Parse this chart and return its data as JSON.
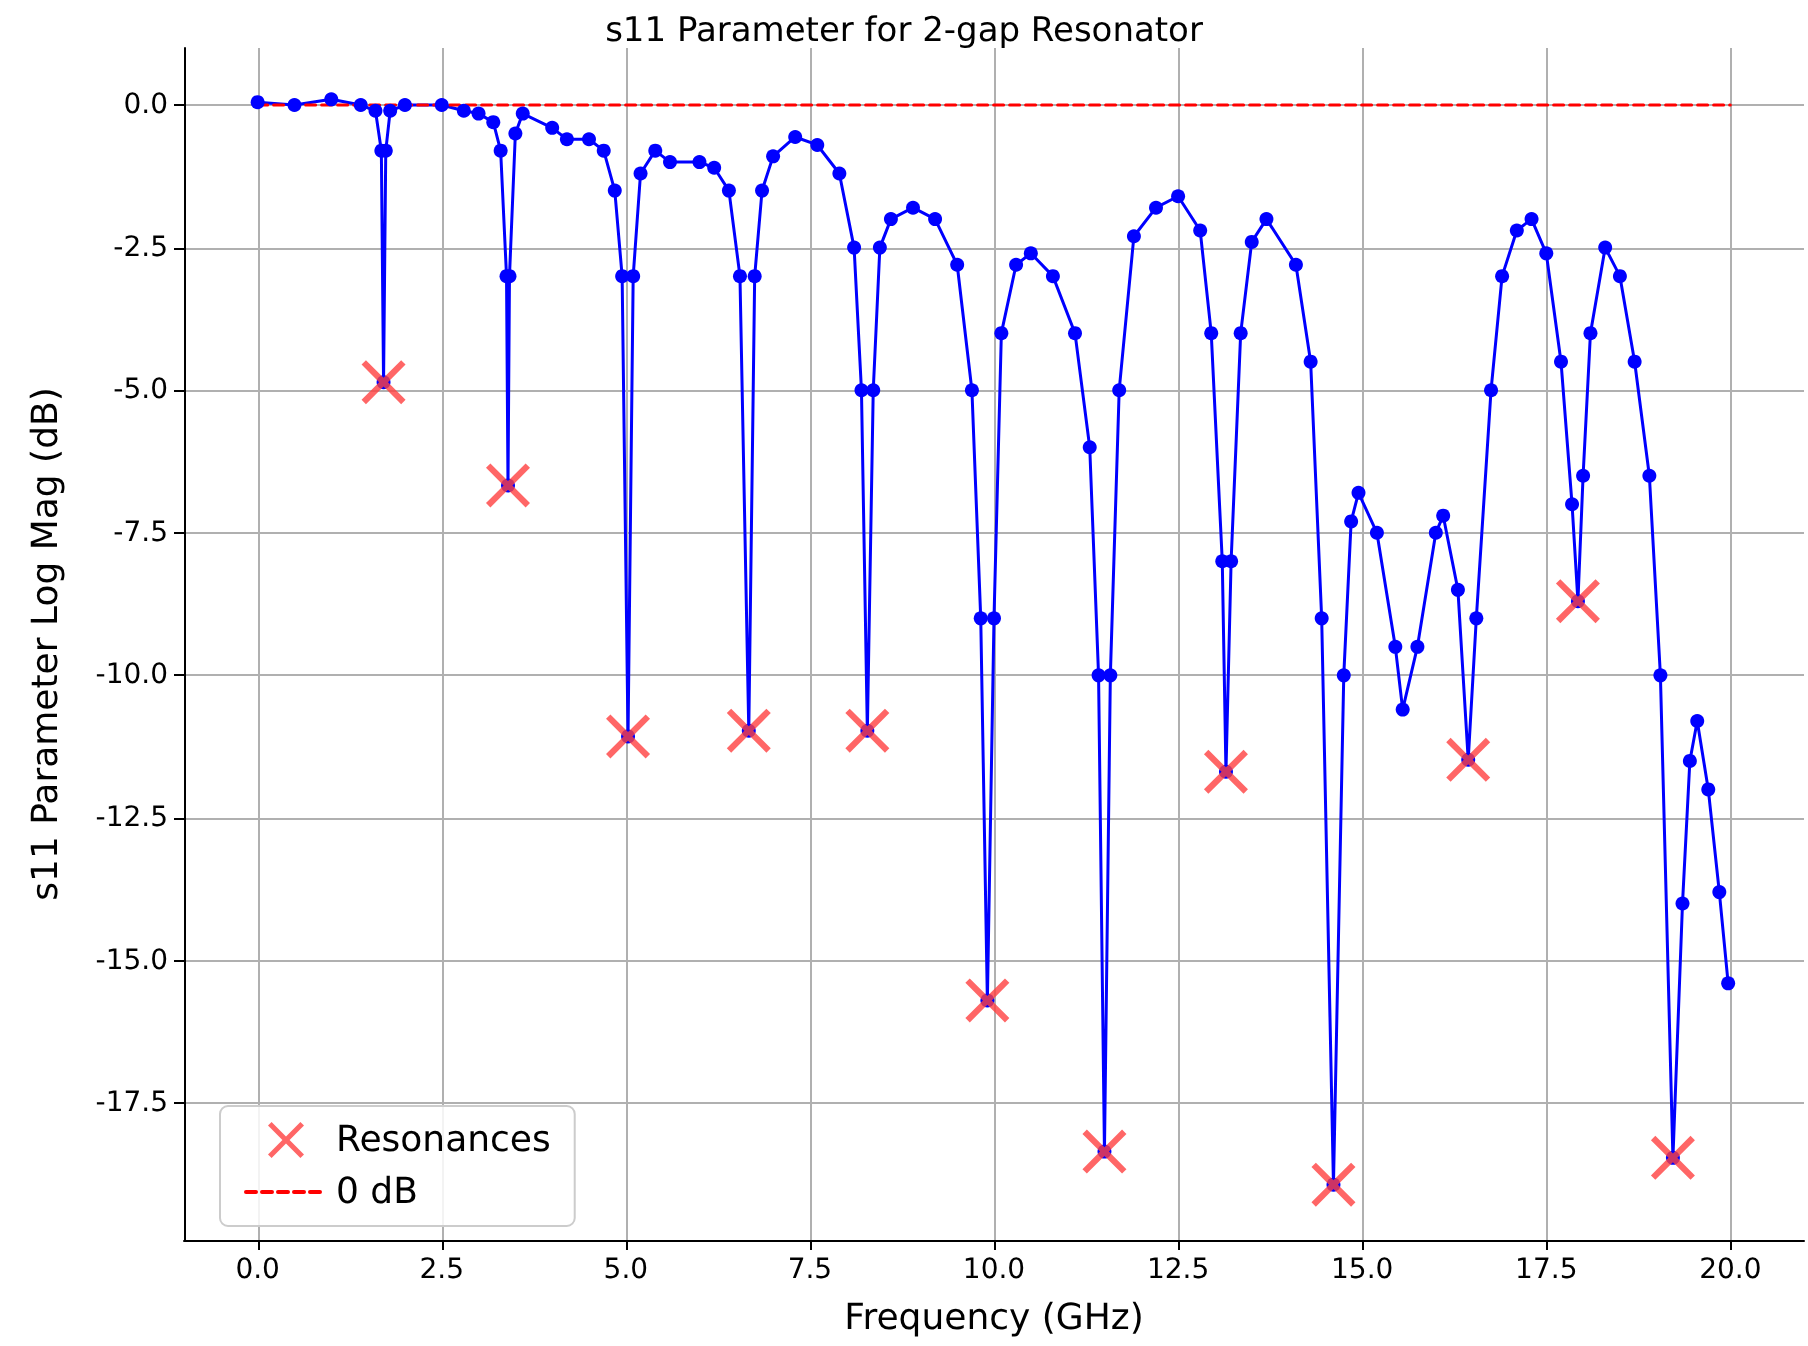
{
  "chart_data": {
    "type": "line",
    "title": "s11 Parameter for 2-gap Resonator",
    "xlabel": "Frequency (GHz)",
    "ylabel": "s11 Parameter Log Mag (dB)",
    "xlim": [
      -1,
      21
    ],
    "xticks": [
      {
        "value": 0,
        "label": "0.0"
      },
      2.5,
      {
        "value": 5,
        "label": "5.0"
      },
      7.5,
      {
        "value": 10,
        "label": "10.0"
      },
      12.5,
      {
        "value": 15,
        "label": "15.0"
      },
      17.5,
      {
        "value": 20,
        "label": "20.0"
      }
    ],
    "ylim": [
      -19.9,
      1.0
    ],
    "yticks": [
      -17.5,
      {
        "value": -15,
        "label": "-15.0"
      },
      -12.5,
      {
        "value": -10,
        "label": "-10.0"
      },
      -7.5,
      {
        "value": -5,
        "label": "-5.0"
      },
      -2.5,
      {
        "value": 0,
        "label": "0.0"
      }
    ],
    "grid": true,
    "legend": "bottom left",
    "series": [
      {
        "color": "#0000ff",
        "marker": "circle",
        "line_style": "solid",
        "x": [
          0,
          0.5,
          1.0,
          1.4,
          1.6,
          1.68,
          1.71,
          1.74,
          1.8,
          2.0,
          2.5,
          2.8,
          3.0,
          3.2,
          3.3,
          3.38,
          3.4,
          3.42,
          3.5,
          3.6,
          4.0,
          4.2,
          4.5,
          4.7,
          4.85,
          4.95,
          5.03,
          5.1,
          5.2,
          5.4,
          5.6,
          6.0,
          6.2,
          6.4,
          6.55,
          6.67,
          6.75,
          6.85,
          7.0,
          7.3,
          7.6,
          7.9,
          8.1,
          8.2,
          8.28,
          8.36,
          8.45,
          8.6,
          8.9,
          9.2,
          9.5,
          9.7,
          9.82,
          9.91,
          10.0,
          10.1,
          10.3,
          10.5,
          10.8,
          11.1,
          11.3,
          11.42,
          11.5,
          11.58,
          11.7,
          11.9,
          12.2,
          12.5,
          12.8,
          12.95,
          13.1,
          13.15,
          13.22,
          13.35,
          13.5,
          13.7,
          14.1,
          14.3,
          14.45,
          14.61,
          14.75,
          14.85,
          14.95,
          15.2,
          15.45,
          15.55,
          15.75,
          16.0,
          16.1,
          16.3,
          16.44,
          16.55,
          16.75,
          16.9,
          17.1,
          17.3,
          17.5,
          17.7,
          17.85,
          17.93,
          18.0,
          18.1,
          18.3,
          18.5,
          18.7,
          18.9,
          19.05,
          19.22,
          19.35,
          19.45,
          19.55,
          19.7,
          19.85,
          19.97
        ],
        "values": [
          0.05,
          0.0,
          0.1,
          0.0,
          -0.1,
          -0.8,
          -4.86,
          -0.8,
          -0.1,
          0.0,
          0.0,
          -0.1,
          -0.15,
          -0.3,
          -0.8,
          -3.0,
          -6.67,
          -3.0,
          -0.5,
          -0.15,
          -0.4,
          -0.6,
          -0.6,
          -0.8,
          -1.5,
          -3.0,
          -11.07,
          -3.0,
          -1.2,
          -0.8,
          -1.0,
          -1.0,
          -1.1,
          -1.5,
          -3.0,
          -10.97,
          -3.0,
          -1.5,
          -0.9,
          -0.56,
          -0.7,
          -1.2,
          -2.5,
          -5.0,
          -10.97,
          -5.0,
          -2.5,
          -2.0,
          -1.8,
          -2.0,
          -2.8,
          -5.0,
          -9.0,
          -15.7,
          -9.0,
          -4.0,
          -2.8,
          -2.6,
          -3.0,
          -4.0,
          -6.0,
          -10.0,
          -18.35,
          -10.0,
          -5.0,
          -2.3,
          -1.8,
          -1.6,
          -2.2,
          -4.0,
          -8.0,
          -11.69,
          -8.0,
          -4.0,
          -2.4,
          -2.0,
          -2.8,
          -4.5,
          -9.0,
          -18.93,
          -10.0,
          -7.3,
          -6.8,
          -7.5,
          -9.5,
          -10.6,
          -9.5,
          -7.5,
          -7.2,
          -8.5,
          -11.48,
          -9.0,
          -5.0,
          -3.0,
          -2.2,
          -2.0,
          -2.6,
          -4.5,
          -7.0,
          -8.7,
          -6.5,
          -4.0,
          -2.5,
          -3.0,
          -4.5,
          -6.5,
          -10.0,
          -18.46,
          -14.0,
          -11.5,
          -10.8,
          -12.0,
          -13.8,
          -15.4
        ]
      },
      {
        "type": "scatter",
        "name": "Resonances",
        "color": "#ff4040",
        "marker": "cross",
        "x": [
          1.71,
          3.4,
          5.03,
          6.67,
          8.28,
          9.91,
          11.5,
          13.15,
          14.61,
          16.44,
          17.93,
          19.22
        ],
        "values": [
          -4.86,
          -6.67,
          -11.07,
          -10.97,
          -10.97,
          -15.7,
          -18.35,
          -11.69,
          -18.93,
          -11.48,
          -8.7,
          -18.46
        ]
      },
      {
        "type": "line",
        "name": "0 dB",
        "color": "#ff0000",
        "marker": "none",
        "line_style": "dashed",
        "x": [
          0,
          20
        ],
        "values": [
          0,
          0
        ]
      }
    ]
  }
}
